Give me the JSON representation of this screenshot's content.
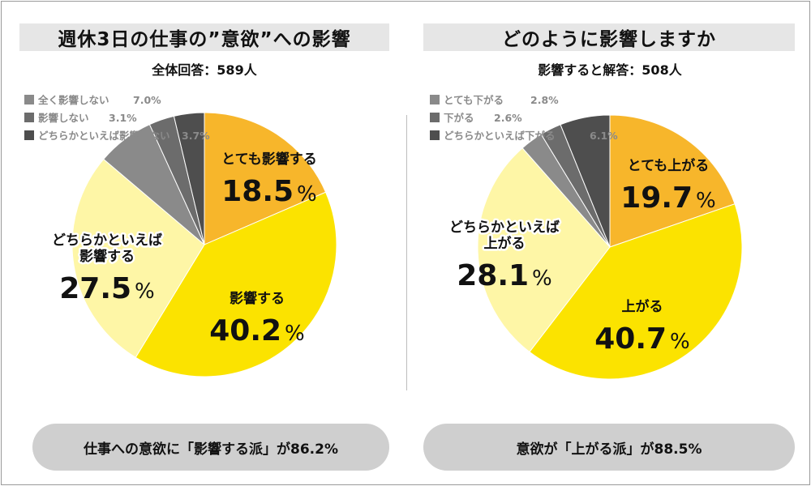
{
  "colors": {
    "bg": "#ffffff",
    "title_band": "#e6e6e6",
    "summary_pill": "#cfcfcf",
    "slice_strong_up": "#f7b62b",
    "slice_up": "#fbe300",
    "slice_somewhat": "#fef6a6",
    "slice_none": "#8a8a8a",
    "slice_little": "#6c6c6c",
    "slice_slight": "#4e4e4e"
  },
  "left": {
    "title": "週休3日の仕事の”意欲”への影響",
    "count_text": "全体回答：589人",
    "summary": "仕事への意欲に「影響する派」が86.2%",
    "chart_data": {
      "type": "pie",
      "title": "週休3日の仕事の”意欲”への影響",
      "slices": [
        {
          "label": "とても影響する",
          "value": 18.5,
          "display": "18.5",
          "color": "#f7b62b"
        },
        {
          "label": "影響する",
          "value": 40.2,
          "display": "40.2",
          "color": "#fbe300"
        },
        {
          "label": "どちらかといえば影響する",
          "value": 27.5,
          "display": "27.5",
          "color": "#fef6a6"
        },
        {
          "label": "全く影響しない",
          "value": 7.0,
          "display": "7.0%",
          "color": "#8a8a8a"
        },
        {
          "label": "影響しない",
          "value": 3.1,
          "display": "3.1%",
          "color": "#6c6c6c"
        },
        {
          "label": "どちらかといえば影響しない",
          "value": 3.7,
          "display": "3.7%",
          "color": "#4e4e4e"
        }
      ],
      "inner_labels": [
        {
          "lines": [
            "とても影響する"
          ]
        },
        {
          "lines": [
            "影響する"
          ]
        },
        {
          "lines": [
            "どちらかといえば",
            "影響する"
          ]
        }
      ],
      "legend": [
        {
          "label": "全く影響しない",
          "pct": "7.0%"
        },
        {
          "label": "影響しない",
          "pct": "3.1%"
        },
        {
          "label": "どちらかといえば影響しない",
          "pct": "3.7%"
        }
      ]
    }
  },
  "right": {
    "title": "どのように影響しますか",
    "count_text": "影響すると解答：508人",
    "summary": "意欲が「上がる派」が88.5%",
    "chart_data": {
      "type": "pie",
      "title": "どのように影響しますか",
      "slices": [
        {
          "label": "とても上がる",
          "value": 19.7,
          "display": "19.7",
          "color": "#f7b62b"
        },
        {
          "label": "上がる",
          "value": 40.7,
          "display": "40.7",
          "color": "#fbe300"
        },
        {
          "label": "どちらかといえば上がる",
          "value": 28.1,
          "display": "28.1",
          "color": "#fef6a6"
        },
        {
          "label": "とても下がる",
          "value": 2.8,
          "display": "2.8%",
          "color": "#8a8a8a"
        },
        {
          "label": "下がる",
          "value": 2.6,
          "display": "2.6%",
          "color": "#6c6c6c"
        },
        {
          "label": "どちらかといえば下がる",
          "value": 6.1,
          "display": "6.1%",
          "color": "#4e4e4e"
        }
      ],
      "inner_labels": [
        {
          "lines": [
            "とても上がる"
          ]
        },
        {
          "lines": [
            "上がる"
          ]
        },
        {
          "lines": [
            "どちらかといえば",
            "上がる"
          ]
        }
      ],
      "legend": [
        {
          "label": "とても下がる",
          "pct": "2.8%"
        },
        {
          "label": "下がる",
          "pct": "2.6%"
        },
        {
          "label": "どちらかといえば下がる",
          "pct": "6.1%"
        }
      ]
    }
  },
  "pct_symbol": "%"
}
